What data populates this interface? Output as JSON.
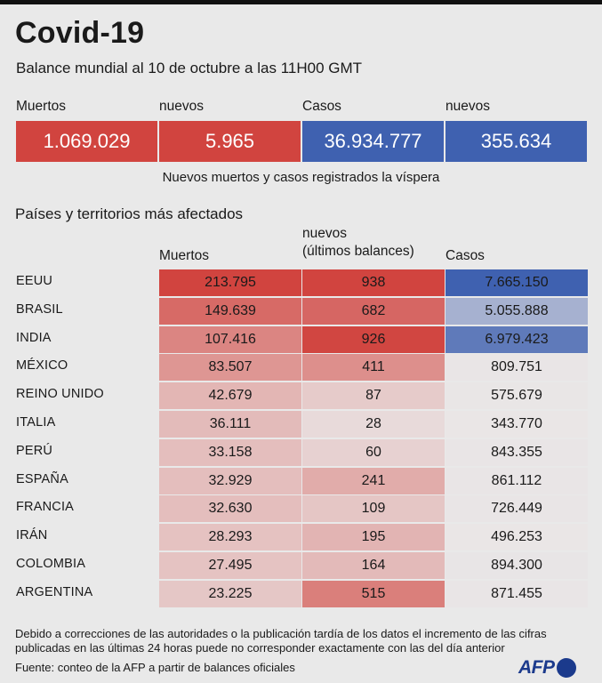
{
  "title": "Covid-19",
  "subtitle": "Balance mundial al 10 de octubre a las 11H00 GMT",
  "summary": {
    "labels": [
      "Muertos",
      "nuevos",
      "Casos",
      "nuevos"
    ],
    "values": [
      "1.069.029",
      "5.965",
      "36.934.777",
      "355.634"
    ],
    "colors": [
      "#d1443f",
      "#d1443f",
      "#3f61b0",
      "#3f61b0"
    ],
    "note": "Nuevos muertos y casos registrados la víspera"
  },
  "section_title": "Países y territorios más afectados",
  "chart_data": {
    "type": "table",
    "columns": [
      "Muertos",
      "nuevos\n(últimos balances)",
      "Casos"
    ],
    "rows": [
      {
        "country": "EEUU",
        "muertos": "213.795",
        "nuevos": "938",
        "casos": "7.665.150"
      },
      {
        "country": "BRASIL",
        "muertos": "149.639",
        "nuevos": "682",
        "casos": "5.055.888"
      },
      {
        "country": "INDIA",
        "muertos": "107.416",
        "nuevos": "926",
        "casos": "6.979.423"
      },
      {
        "country": "MÉXICO",
        "muertos": "83.507",
        "nuevos": "411",
        "casos": "809.751"
      },
      {
        "country": "REINO UNIDO",
        "muertos": "42.679",
        "nuevos": "87",
        "casos": "575.679"
      },
      {
        "country": "ITALIA",
        "muertos": "36.111",
        "nuevos": "28",
        "casos": "343.770"
      },
      {
        "country": "PERÚ",
        "muertos": "33.158",
        "nuevos": "60",
        "casos": "843.355"
      },
      {
        "country": "ESPAÑA",
        "muertos": "32.929",
        "nuevos": "241",
        "casos": "861.112"
      },
      {
        "country": "FRANCIA",
        "muertos": "32.630",
        "nuevos": "109",
        "casos": "726.449"
      },
      {
        "country": "IRÁN",
        "muertos": "28.293",
        "nuevos": "195",
        "casos": "496.253"
      },
      {
        "country": "COLOMBIA",
        "muertos": "27.495",
        "nuevos": "164",
        "casos": "894.300"
      },
      {
        "country": "ARGENTINA",
        "muertos": "23.225",
        "nuevos": "515",
        "casos": "871.455"
      }
    ],
    "colors": {
      "deaths": "#d1443f",
      "cases": "#3f61b0"
    }
  },
  "footnote": "Debido a correcciones de las autoridades o la publicación tardía de los datos  el incremento de las cifras publicadas en las últimas 24 horas puede no corresponder exactamente con las del día anterior",
  "source": "Fuente: conteo de la AFP a partir de balances oficiales",
  "logo_text": "AFP"
}
